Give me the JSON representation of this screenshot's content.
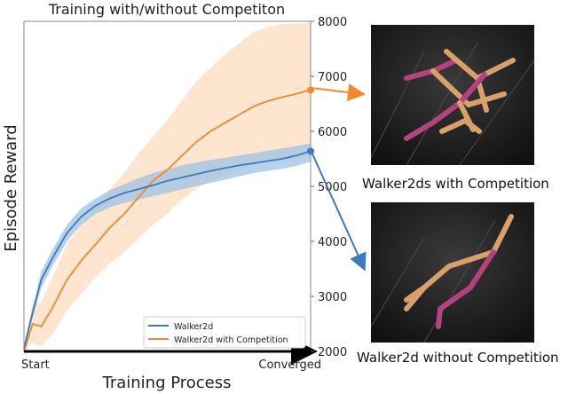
{
  "chart_data": {
    "type": "line",
    "title": "Training with/without Competiton",
    "xlabel": "Training Process",
    "ylabel": "Episode Reward",
    "x_tick_labels": [
      "Start",
      "Converged"
    ],
    "yticks": [
      2000,
      3000,
      4000,
      5000,
      6000,
      7000,
      8000
    ],
    "ylim": [
      2000,
      8000
    ],
    "y_axis_side": "right",
    "grid": false,
    "legend_position": "bottom-right",
    "x": [
      0,
      0.03,
      0.06,
      0.1,
      0.15,
      0.2,
      0.25,
      0.3,
      0.35,
      0.4,
      0.45,
      0.5,
      0.55,
      0.6,
      0.65,
      0.7,
      0.75,
      0.8,
      0.85,
      0.9,
      0.95,
      1.0
    ],
    "series": [
      {
        "name": "Walker2d",
        "color": "#3a7ac0",
        "band_color": "#9ec1e3",
        "values": [
          2050,
          2700,
          3300,
          3700,
          4150,
          4450,
          4650,
          4780,
          4880,
          4950,
          5020,
          5100,
          5160,
          5220,
          5280,
          5330,
          5380,
          5420,
          5460,
          5500,
          5560,
          5640
        ],
        "upper": [
          2100,
          2800,
          3450,
          3850,
          4300,
          4600,
          4780,
          4930,
          5040,
          5150,
          5240,
          5320,
          5380,
          5430,
          5480,
          5520,
          5560,
          5600,
          5650,
          5690,
          5730,
          5780
        ],
        "lower": [
          2000,
          2600,
          3150,
          3550,
          4000,
          4300,
          4500,
          4620,
          4700,
          4760,
          4820,
          4880,
          4940,
          5000,
          5060,
          5120,
          5180,
          5240,
          5280,
          5320,
          5370,
          5450
        ]
      },
      {
        "name": "Walker2d with Competition",
        "color": "#f0892a",
        "band_color": "#fbd3b0",
        "values": [
          2000,
          2500,
          2450,
          2800,
          3300,
          3650,
          3950,
          4250,
          4500,
          4800,
          5100,
          5300,
          5550,
          5800,
          6000,
          6150,
          6300,
          6450,
          6550,
          6620,
          6680,
          6750
        ],
        "upper": [
          2100,
          2850,
          2900,
          3350,
          3950,
          4300,
          4600,
          4950,
          5250,
          5600,
          5900,
          6200,
          6550,
          6900,
          7150,
          7400,
          7600,
          7800,
          7900,
          7950,
          7950,
          7980
        ],
        "lower": [
          2000,
          2150,
          2100,
          2300,
          2750,
          3050,
          3350,
          3600,
          3800,
          4050,
          4300,
          4500,
          4750,
          4950,
          5100,
          5200,
          5300,
          5400,
          5450,
          5480,
          5500,
          5550
        ]
      }
    ]
  },
  "captions": {
    "with": "Walker2ds with Competition",
    "without": "Walker2d without Competition"
  }
}
